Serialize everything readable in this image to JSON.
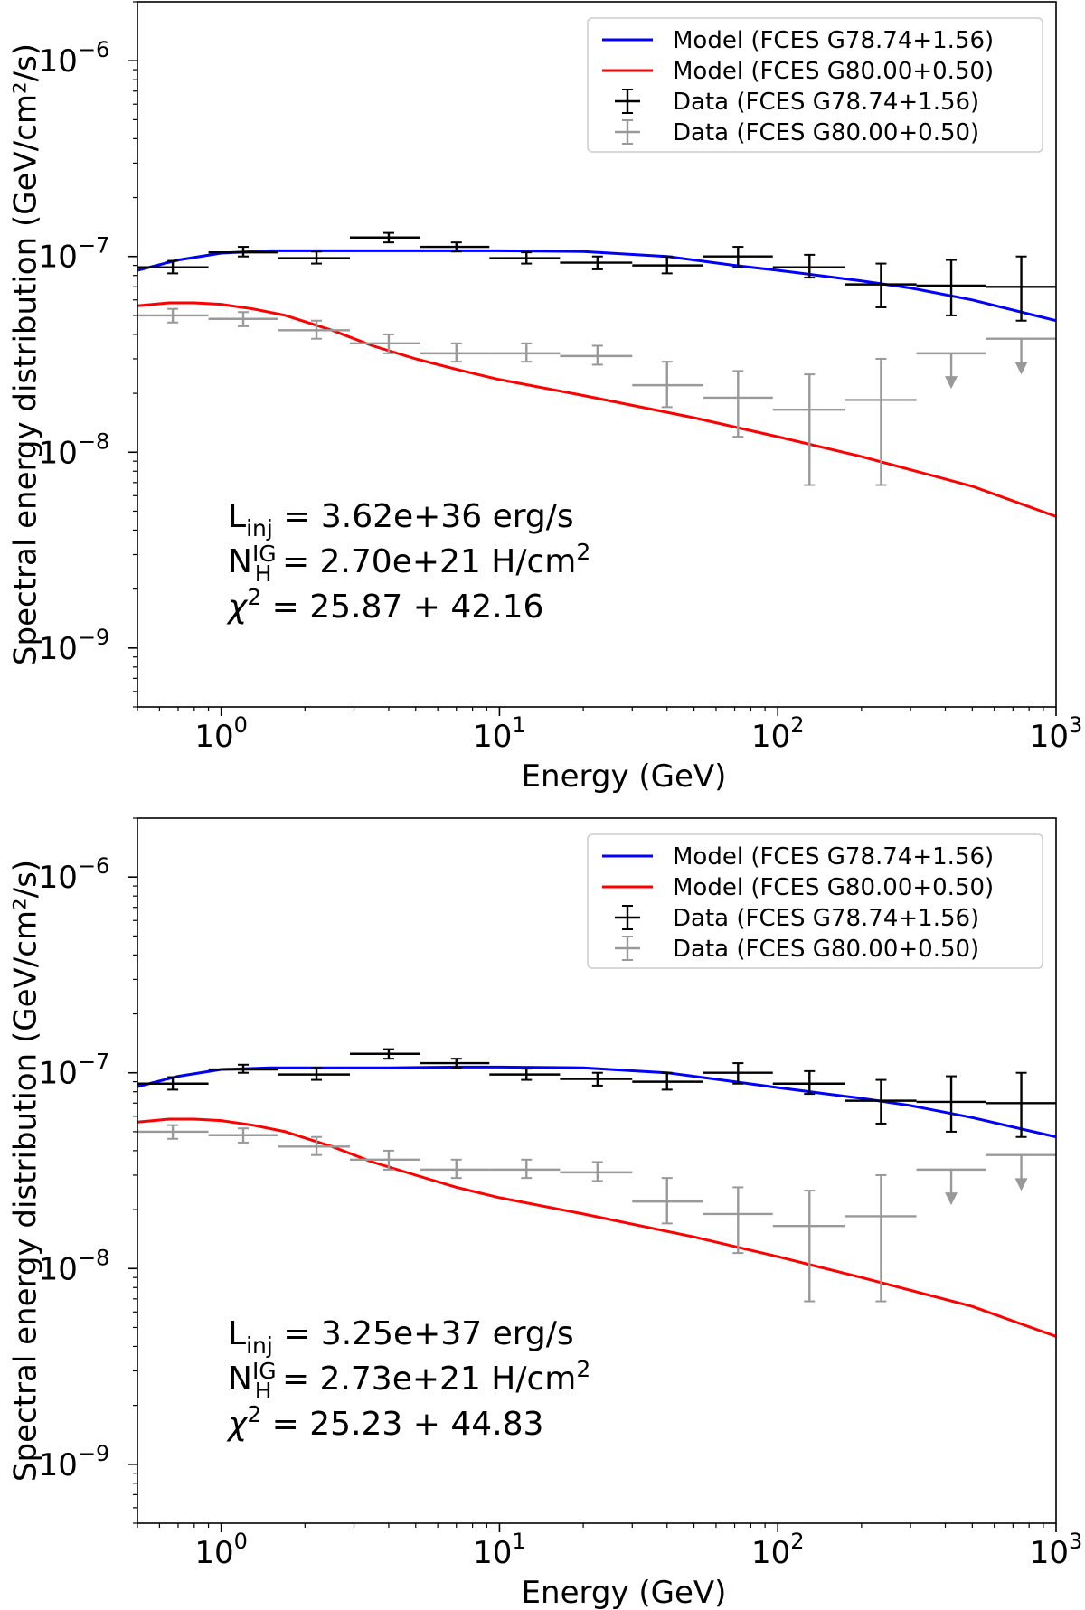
{
  "chart_data": [
    {
      "type": "line",
      "xlabel": "Energy (GeV)",
      "ylabel": "Spectral energy distribution (GeV/cm²/s)",
      "x_scale": "log",
      "y_scale": "log",
      "xlim": [
        0.5,
        1000
      ],
      "ylim": [
        5e-10,
        2e-06
      ],
      "x_ticks": [
        {
          "value": 1,
          "base": "10",
          "exp": "0"
        },
        {
          "value": 10,
          "base": "10",
          "exp": "1"
        },
        {
          "value": 100,
          "base": "10",
          "exp": "2"
        },
        {
          "value": 1000,
          "base": "10",
          "exp": "3"
        }
      ],
      "y_ticks": [
        {
          "value": 1e-09,
          "base": "10",
          "exp": "−9"
        },
        {
          "value": 1e-08,
          "base": "10",
          "exp": "−8"
        },
        {
          "value": 1e-07,
          "base": "10",
          "exp": "−7"
        },
        {
          "value": 1e-06,
          "base": "10",
          "exp": "−6"
        }
      ],
      "legend_position": "top-right",
      "lines": [
        {
          "name": "Model (FCES G78.74+1.56)",
          "color": "#0000ff",
          "x": [
            0.5,
            0.7,
            1.0,
            1.5,
            2.5,
            4,
            7,
            10,
            20,
            40,
            70,
            100,
            150,
            200,
            300,
            500,
            1000
          ],
          "y": [
            8.5e-08,
            9.6e-08,
            1.04e-07,
            1.07e-07,
            1.07e-07,
            1.07e-07,
            1.07e-07,
            1.07e-07,
            1.06e-07,
            1e-07,
            9e-08,
            8.5e-08,
            7.9e-08,
            7.5e-08,
            6.9e-08,
            6e-08,
            4.7e-08
          ]
        },
        {
          "name": "Model (FCES G80.00+0.50)",
          "color": "#ff0000",
          "x": [
            0.5,
            0.65,
            0.8,
            1.0,
            1.3,
            1.7,
            2.5,
            3.5,
            5,
            7,
            10,
            20,
            50,
            100,
            200,
            500,
            1000
          ],
          "y": [
            5.6e-08,
            5.8e-08,
            5.8e-08,
            5.7e-08,
            5.4e-08,
            5e-08,
            4.2e-08,
            3.5e-08,
            3e-08,
            2.65e-08,
            2.35e-08,
            1.95e-08,
            1.5e-08,
            1.2e-08,
            9.5e-09,
            6.7e-09,
            4.7e-09
          ]
        }
      ],
      "series": [
        {
          "name": "Data (FCES G78.74+1.56)",
          "color": "#000000",
          "x": [
            0.67,
            1.2,
            2.2,
            4.0,
            7.0,
            12.5,
            22.5,
            40,
            72,
            130,
            235,
            420,
            750
          ],
          "xerr_lo": [
            0.5,
            0.9,
            1.6,
            2.9,
            5.2,
            9.2,
            16.5,
            30,
            54,
            96,
            175,
            315,
            560
          ],
          "xerr_hi": [
            0.9,
            1.6,
            2.9,
            5.2,
            9.2,
            16.5,
            30,
            54,
            96,
            175,
            315,
            560,
            1000
          ],
          "y": [
            8.8e-08,
            1.05e-07,
            9.8e-08,
            1.25e-07,
            1.12e-07,
            9.8e-08,
            9.3e-08,
            9e-08,
            1e-07,
            8.8e-08,
            7.2e-08,
            7.1e-08,
            7e-08
          ],
          "yerr_lo": [
            8.2e-08,
            1e-07,
            9.2e-08,
            1.18e-07,
            1.06e-07,
            9.2e-08,
            8.6e-08,
            8.2e-08,
            8.8e-08,
            7.8e-08,
            5.5e-08,
            5e-08,
            4.7e-08
          ],
          "yerr_hi": [
            9.5e-08,
            1.12e-07,
            1.06e-07,
            1.32e-07,
            1.18e-07,
            1.05e-07,
            1e-07,
            1e-07,
            1.12e-07,
            1.02e-07,
            9.2e-08,
            9.6e-08,
            1e-07
          ]
        },
        {
          "name": "Data (FCES G80.00+0.50)",
          "color": "#999999",
          "x": [
            0.67,
            1.2,
            2.2,
            4.0,
            7.0,
            12.5,
            22.5,
            40,
            72,
            130,
            235,
            420,
            750
          ],
          "xerr_lo": [
            0.5,
            0.9,
            1.6,
            2.9,
            5.2,
            9.2,
            16.5,
            30,
            54,
            96,
            175,
            315,
            560
          ],
          "xerr_hi": [
            0.9,
            1.6,
            2.9,
            5.2,
            9.2,
            16.5,
            30,
            54,
            96,
            175,
            315,
            560,
            1000
          ],
          "y": [
            5e-08,
            4.8e-08,
            4.2e-08,
            3.6e-08,
            3.2e-08,
            3.2e-08,
            3.1e-08,
            2.2e-08,
            1.9e-08,
            1.65e-08,
            1.85e-08,
            3.2e-08,
            3.8e-08
          ],
          "yerr_lo": [
            4.6e-08,
            4.4e-08,
            3.8e-08,
            3.2e-08,
            2.9e-08,
            2.9e-08,
            2.8e-08,
            1.7e-08,
            1.2e-08,
            6.8e-09,
            6.8e-09,
            null,
            null
          ],
          "yerr_hi": [
            5.4e-08,
            5.2e-08,
            4.7e-08,
            4e-08,
            3.6e-08,
            3.6e-08,
            3.5e-08,
            2.9e-08,
            2.6e-08,
            2.5e-08,
            3e-08,
            null,
            null
          ],
          "upper_limit": [
            false,
            false,
            false,
            false,
            false,
            false,
            false,
            false,
            false,
            false,
            false,
            true,
            true
          ],
          "ul_arrow_to": [
            null,
            null,
            null,
            null,
            null,
            null,
            null,
            null,
            null,
            null,
            null,
            2.2e-08,
            2.6e-08
          ]
        }
      ],
      "annotations": [
        {
          "main": "L",
          "sub": "inj",
          "text": " = 3.62e+36 erg/s"
        },
        {
          "main": "N",
          "sub": "H",
          "sup": "IG",
          "text": " = 2.70e+21 H/cm",
          "unit_exp": "2"
        },
        {
          "main": "χ",
          "sup": "2",
          "text": " = 25.87 + 42.16"
        }
      ]
    },
    {
      "type": "line",
      "xlabel": "Energy (GeV)",
      "ylabel": "Spectral energy distribution (GeV/cm²/s)",
      "x_scale": "log",
      "y_scale": "log",
      "xlim": [
        0.5,
        1000
      ],
      "ylim": [
        5e-10,
        2e-06
      ],
      "x_ticks": [
        {
          "value": 1,
          "base": "10",
          "exp": "0"
        },
        {
          "value": 10,
          "base": "10",
          "exp": "1"
        },
        {
          "value": 100,
          "base": "10",
          "exp": "2"
        },
        {
          "value": 1000,
          "base": "10",
          "exp": "3"
        }
      ],
      "y_ticks": [
        {
          "value": 1e-09,
          "base": "10",
          "exp": "−9"
        },
        {
          "value": 1e-08,
          "base": "10",
          "exp": "−8"
        },
        {
          "value": 1e-07,
          "base": "10",
          "exp": "−7"
        },
        {
          "value": 1e-06,
          "base": "10",
          "exp": "−6"
        }
      ],
      "legend_position": "top-right",
      "lines": [
        {
          "name": "Model (FCES G78.74+1.56)",
          "color": "#0000ff",
          "x": [
            0.5,
            0.7,
            1.0,
            1.5,
            2.5,
            4,
            7,
            10,
            20,
            40,
            70,
            100,
            150,
            200,
            300,
            500,
            1000
          ],
          "y": [
            8.5e-08,
            9.6e-08,
            1.04e-07,
            1.06e-07,
            1.06e-07,
            1.06e-07,
            1.07e-07,
            1.07e-07,
            1.06e-07,
            1e-07,
            9e-08,
            8.4e-08,
            7.8e-08,
            7.4e-08,
            6.8e-08,
            5.9e-08,
            4.7e-08
          ]
        },
        {
          "name": "Model (FCES G80.00+0.50)",
          "color": "#ff0000",
          "x": [
            0.5,
            0.65,
            0.8,
            1.0,
            1.3,
            1.7,
            2.5,
            3.5,
            5,
            7,
            10,
            20,
            50,
            100,
            200,
            500,
            1000
          ],
          "y": [
            5.6e-08,
            5.8e-08,
            5.8e-08,
            5.7e-08,
            5.4e-08,
            5e-08,
            4.2e-08,
            3.5e-08,
            3e-08,
            2.6e-08,
            2.3e-08,
            1.9e-08,
            1.45e-08,
            1.15e-08,
            9e-09,
            6.4e-09,
            4.5e-09
          ]
        }
      ],
      "series": [
        {
          "name": "Data (FCES G78.74+1.56)",
          "color": "#000000",
          "x": [
            0.67,
            1.2,
            2.2,
            4.0,
            7.0,
            12.5,
            22.5,
            40,
            72,
            130,
            235,
            420,
            750
          ],
          "xerr_lo": [
            0.5,
            0.9,
            1.6,
            2.9,
            5.2,
            9.2,
            16.5,
            30,
            54,
            96,
            175,
            315,
            560
          ],
          "xerr_hi": [
            0.9,
            1.6,
            2.9,
            5.2,
            9.2,
            16.5,
            30,
            54,
            96,
            175,
            315,
            560,
            1000
          ],
          "y": [
            8.8e-08,
            1.04e-07,
            9.8e-08,
            1.25e-07,
            1.12e-07,
            9.8e-08,
            9.3e-08,
            9e-08,
            1e-07,
            8.8e-08,
            7.2e-08,
            7.1e-08,
            7e-08
          ],
          "yerr_lo": [
            8.2e-08,
            1e-07,
            9.2e-08,
            1.18e-07,
            1.06e-07,
            9.2e-08,
            8.6e-08,
            8.2e-08,
            8.8e-08,
            7.8e-08,
            5.5e-08,
            5e-08,
            4.7e-08
          ],
          "yerr_hi": [
            9.5e-08,
            1.1e-07,
            1.06e-07,
            1.32e-07,
            1.18e-07,
            1.05e-07,
            1e-07,
            1e-07,
            1.12e-07,
            1.02e-07,
            9.2e-08,
            9.6e-08,
            1e-07
          ]
        },
        {
          "name": "Data (FCES G80.00+0.50)",
          "color": "#999999",
          "x": [
            0.67,
            1.2,
            2.2,
            4.0,
            7.0,
            12.5,
            22.5,
            40,
            72,
            130,
            235,
            420,
            750
          ],
          "xerr_lo": [
            0.5,
            0.9,
            1.6,
            2.9,
            5.2,
            9.2,
            16.5,
            30,
            54,
            96,
            175,
            315,
            560
          ],
          "xerr_hi": [
            0.9,
            1.6,
            2.9,
            5.2,
            9.2,
            16.5,
            30,
            54,
            96,
            175,
            315,
            560,
            1000
          ],
          "y": [
            5e-08,
            4.8e-08,
            4.2e-08,
            3.6e-08,
            3.2e-08,
            3.2e-08,
            3.1e-08,
            2.2e-08,
            1.9e-08,
            1.65e-08,
            1.85e-08,
            3.2e-08,
            3.8e-08
          ],
          "yerr_lo": [
            4.6e-08,
            4.4e-08,
            3.8e-08,
            3.2e-08,
            2.9e-08,
            2.9e-08,
            2.8e-08,
            1.7e-08,
            1.2e-08,
            6.8e-09,
            6.8e-09,
            null,
            null
          ],
          "yerr_hi": [
            5.4e-08,
            5.2e-08,
            4.7e-08,
            4e-08,
            3.6e-08,
            3.6e-08,
            3.5e-08,
            2.9e-08,
            2.6e-08,
            2.5e-08,
            3e-08,
            null,
            null
          ],
          "upper_limit": [
            false,
            false,
            false,
            false,
            false,
            false,
            false,
            false,
            false,
            false,
            false,
            true,
            true
          ],
          "ul_arrow_to": [
            null,
            null,
            null,
            null,
            null,
            null,
            null,
            null,
            null,
            null,
            null,
            2.2e-08,
            2.6e-08
          ]
        }
      ],
      "annotations": [
        {
          "main": "L",
          "sub": "inj",
          "text": " = 3.25e+37 erg/s"
        },
        {
          "main": "N",
          "sub": "H",
          "sup": "IG",
          "text": " = 2.73e+21 H/cm",
          "unit_exp": "2"
        },
        {
          "main": "χ",
          "sup": "2",
          "text": " = 25.23 + 44.83"
        }
      ]
    }
  ]
}
